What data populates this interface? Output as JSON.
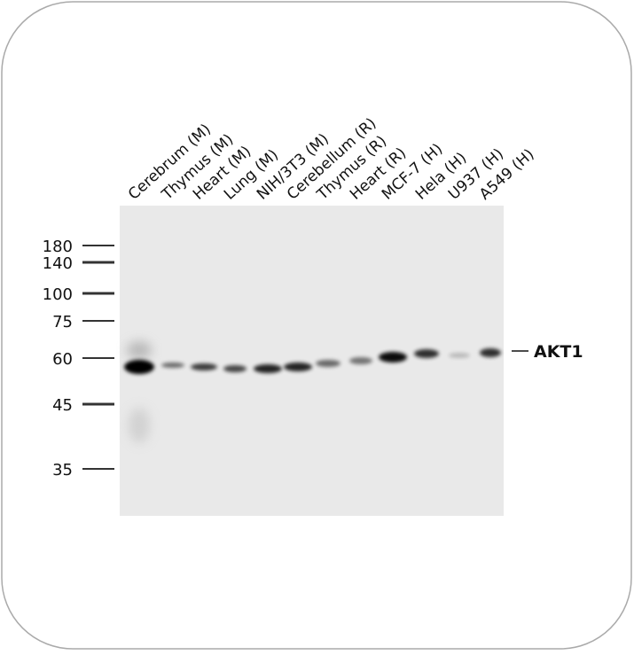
{
  "lanes": [
    "Cerebrum (M)",
    "Thymus (M)",
    "Heart (M)",
    "Lung (M)",
    "NIH/3T3 (M)",
    "Cerebellum (R)",
    "Thymus (R)",
    "Heart (R)",
    "MCF-7 (H)",
    "Hela (H)",
    "U937 (H)",
    "A549 (H)"
  ],
  "markers": [
    "180",
    "140",
    "100",
    "75",
    "60",
    "45",
    "35"
  ],
  "target": "AKT1"
}
